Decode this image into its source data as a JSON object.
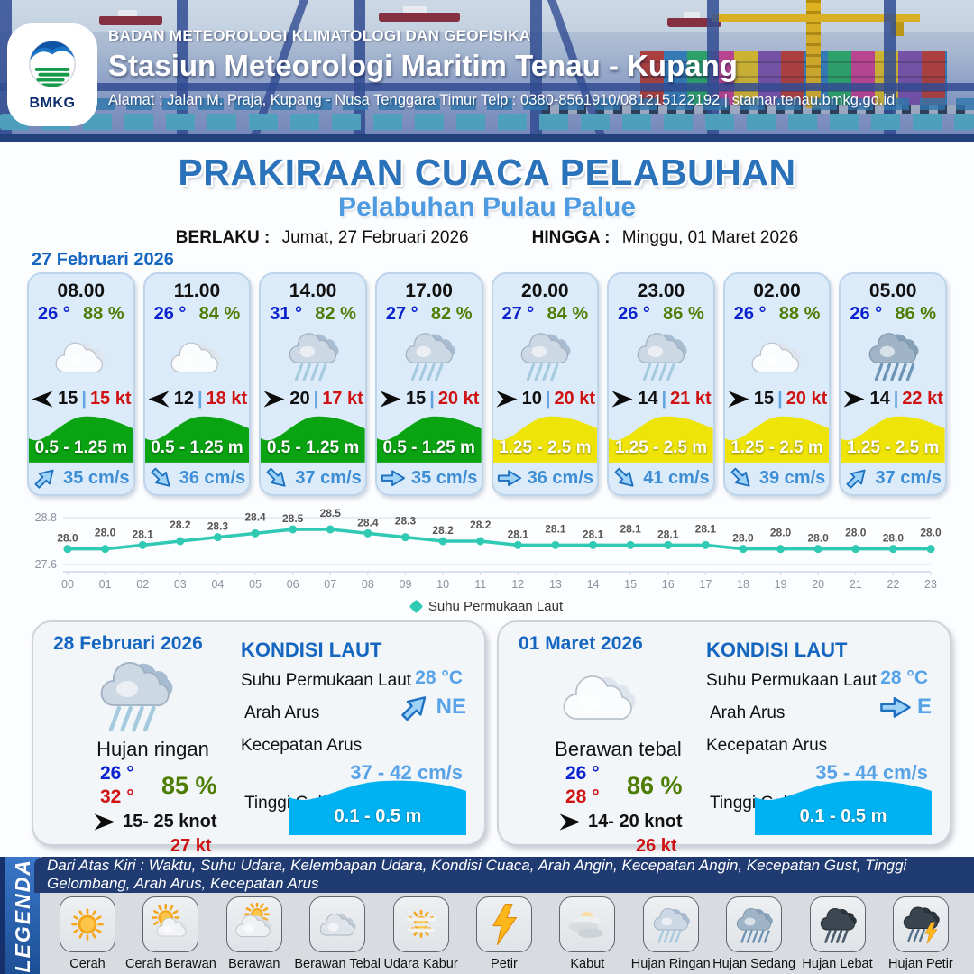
{
  "header": {
    "logo_text": "BMKG",
    "agency": "BADAN METEOROLOGI KLIMATOLOGI DAN GEOFISIKA",
    "station": "Stasiun Meteorologi Maritim Tenau - Kupang",
    "address": "Alamat : Jalan M. Praja, Kupang - Nusa Tenggara Timur Telp : 0380-8561910/081215122192  | stamar.tenau.bmkg.go.id"
  },
  "title": {
    "main": "PRAKIRAAN CUACA PELABUHAN",
    "subtitle": "Pelabuhan Pulau Palue",
    "valid_from_label": "BERLAKU :",
    "valid_from": "Jumat, 27 Februari 2026",
    "valid_to_label": "HINGGA :",
    "valid_to": "Minggu, 01 Maret 2026",
    "section_date": "27 Februari 2026"
  },
  "labels": {
    "sep": "|"
  },
  "cards": [
    {
      "time": "08.00",
      "temp": "26 °",
      "humidity": "88 %",
      "icon": "cloud",
      "wind_dir": "left",
      "wind": "15",
      "gust": "15 kt",
      "wave": "0.5 - 1.25 m",
      "wave_level": "green",
      "current_dir": "NE",
      "current": "35 cm/s"
    },
    {
      "time": "11.00",
      "temp": "26 °",
      "humidity": "84 %",
      "icon": "cloud",
      "wind_dir": "left",
      "wind": "12",
      "gust": "18 kt",
      "wave": "0.5 - 1.25 m",
      "wave_level": "green",
      "current_dir": "SE",
      "current": "36 cm/s"
    },
    {
      "time": "14.00",
      "temp": "31 °",
      "humidity": "82 %",
      "icon": "rain-light",
      "wind_dir": "right",
      "wind": "20",
      "gust": "17 kt",
      "wave": "0.5 - 1.25 m",
      "wave_level": "green",
      "current_dir": "SE",
      "current": "37 cm/s"
    },
    {
      "time": "17.00",
      "temp": "27 °",
      "humidity": "82 %",
      "icon": "rain-light",
      "wind_dir": "right",
      "wind": "15",
      "gust": "20 kt",
      "wave": "0.5 - 1.25 m",
      "wave_level": "green",
      "current_dir": "E",
      "current": "35 cm/s"
    },
    {
      "time": "20.00",
      "temp": "27 °",
      "humidity": "84 %",
      "icon": "rain-light",
      "wind_dir": "right",
      "wind": "10",
      "gust": "20 kt",
      "wave": "1.25 - 2.5 m",
      "wave_level": "yellow",
      "current_dir": "E",
      "current": "36 cm/s"
    },
    {
      "time": "23.00",
      "temp": "26 °",
      "humidity": "86 %",
      "icon": "rain-light",
      "wind_dir": "right",
      "wind": "14",
      "gust": "21 kt",
      "wave": "1.25 - 2.5 m",
      "wave_level": "yellow",
      "current_dir": "SE",
      "current": "41 cm/s"
    },
    {
      "time": "02.00",
      "temp": "26 °",
      "humidity": "88 %",
      "icon": "cloud",
      "wind_dir": "right",
      "wind": "15",
      "gust": "20 kt",
      "wave": "1.25 - 2.5 m",
      "wave_level": "yellow",
      "current_dir": "SE",
      "current": "39 cm/s"
    },
    {
      "time": "05.00",
      "temp": "26 °",
      "humidity": "86 %",
      "icon": "rain-medium",
      "wind_dir": "right",
      "wind": "14",
      "gust": "22 kt",
      "wave": "1.25 - 2.5 m",
      "wave_level": "yellow",
      "current_dir": "NE",
      "current": "37 cm/s"
    }
  ],
  "chart_data": {
    "type": "line",
    "series_name": "Suhu Permukaan Laut",
    "x": [
      "00",
      "01",
      "02",
      "03",
      "04",
      "05",
      "06",
      "07",
      "08",
      "09",
      "10",
      "11",
      "12",
      "13",
      "14",
      "15",
      "16",
      "17",
      "18",
      "19",
      "20",
      "21",
      "22",
      "23"
    ],
    "values": [
      28.0,
      28.0,
      28.1,
      28.2,
      28.3,
      28.4,
      28.5,
      28.5,
      28.4,
      28.3,
      28.2,
      28.2,
      28.1,
      28.1,
      28.1,
      28.1,
      28.1,
      28.1,
      28.0,
      28.0,
      28.0,
      28.0,
      28.0,
      28.0
    ],
    "ylim": [
      27.6,
      28.8
    ],
    "yticks": [
      28.8,
      27.6
    ],
    "grid": true,
    "legend_position": "bottom",
    "line_color": "#2fc9b4"
  },
  "days": [
    {
      "date": "28 Februari 2026",
      "icon": "rain-light",
      "condition": "Hujan ringan",
      "temp_min": "26 °",
      "temp_max": "32 °",
      "humidity": "85 %",
      "wind_dir": "right",
      "wind_range": "15- 25 knot",
      "gust": "27 kt",
      "sea": {
        "title": "KONDISI LAUT",
        "sst_label": "Suhu Permukaan Laut",
        "sst": "28 °C",
        "current_dir_label": "Arah Arus",
        "current_dir": "NE",
        "current_speed_label": "Kecepatan Arus",
        "current_speed": "37 - 42 cm/s",
        "wave_label": "Tinggi Gelombang",
        "wave": "0.1 - 0.5 m"
      }
    },
    {
      "date": "01 Maret 2026",
      "icon": "cloud",
      "condition": "Berawan tebal",
      "temp_min": "26 °",
      "temp_max": "28 °",
      "humidity": "86 %",
      "wind_dir": "right",
      "wind_range": "14- 20 knot",
      "gust": "26 kt",
      "sea": {
        "title": "KONDISI LAUT",
        "sst_label": "Suhu Permukaan Laut",
        "sst": "28 °C",
        "current_dir_label": "Arah Arus",
        "current_dir": "E",
        "current_speed_label": "Kecepatan Arus",
        "current_speed": "35 - 44 cm/s",
        "wave_label": "Tinggi Gelombang",
        "wave": "0.1 - 0.5 m"
      }
    }
  ],
  "legend": {
    "title": "LEGENDA",
    "note": "Dari Atas Kiri : Waktu, Suhu Udara, Kelembapan Udara, Kondisi Cuaca, Arah Angin, Kecepatan Angin, Kecepatan Gust, Tinggi Gelombang, Arah Arus, Kecepatan Arus",
    "items": [
      {
        "icon": "sun",
        "label": "Cerah"
      },
      {
        "icon": "sun-cloud",
        "label": "Cerah Berawan"
      },
      {
        "icon": "cloud-sun",
        "label": "Berawan"
      },
      {
        "icon": "clouds",
        "label": "Berawan Tebal"
      },
      {
        "icon": "haze",
        "label": "Udara Kabur"
      },
      {
        "icon": "lightning",
        "label": "Petir"
      },
      {
        "icon": "fog",
        "label": "Kabut"
      },
      {
        "icon": "rain-light",
        "label": "Hujan Ringan"
      },
      {
        "icon": "rain-medium",
        "label": "Hujan Sedang"
      },
      {
        "icon": "rain-heavy",
        "label": "Hujan Lebat"
      },
      {
        "icon": "rain-lightning",
        "label": "Hujan Petir"
      }
    ]
  },
  "colors": {
    "title_blue": "#2a72ba",
    "subtitle_blue": "#4e9be2",
    "date_blue": "#1566c0",
    "temp_blue": "#0b23cf",
    "humidity_green": "#4e7d04",
    "gust_red": "#cf1313",
    "current_blue": "#3e8ed6",
    "wave_green": "#0aa312",
    "wave_yellow": "#efe408",
    "sea_cyan": "#00b2f1",
    "chart_teal": "#2fc9b4",
    "legend_navy": "#203b72",
    "legend_blue": "#2f6fc2"
  }
}
